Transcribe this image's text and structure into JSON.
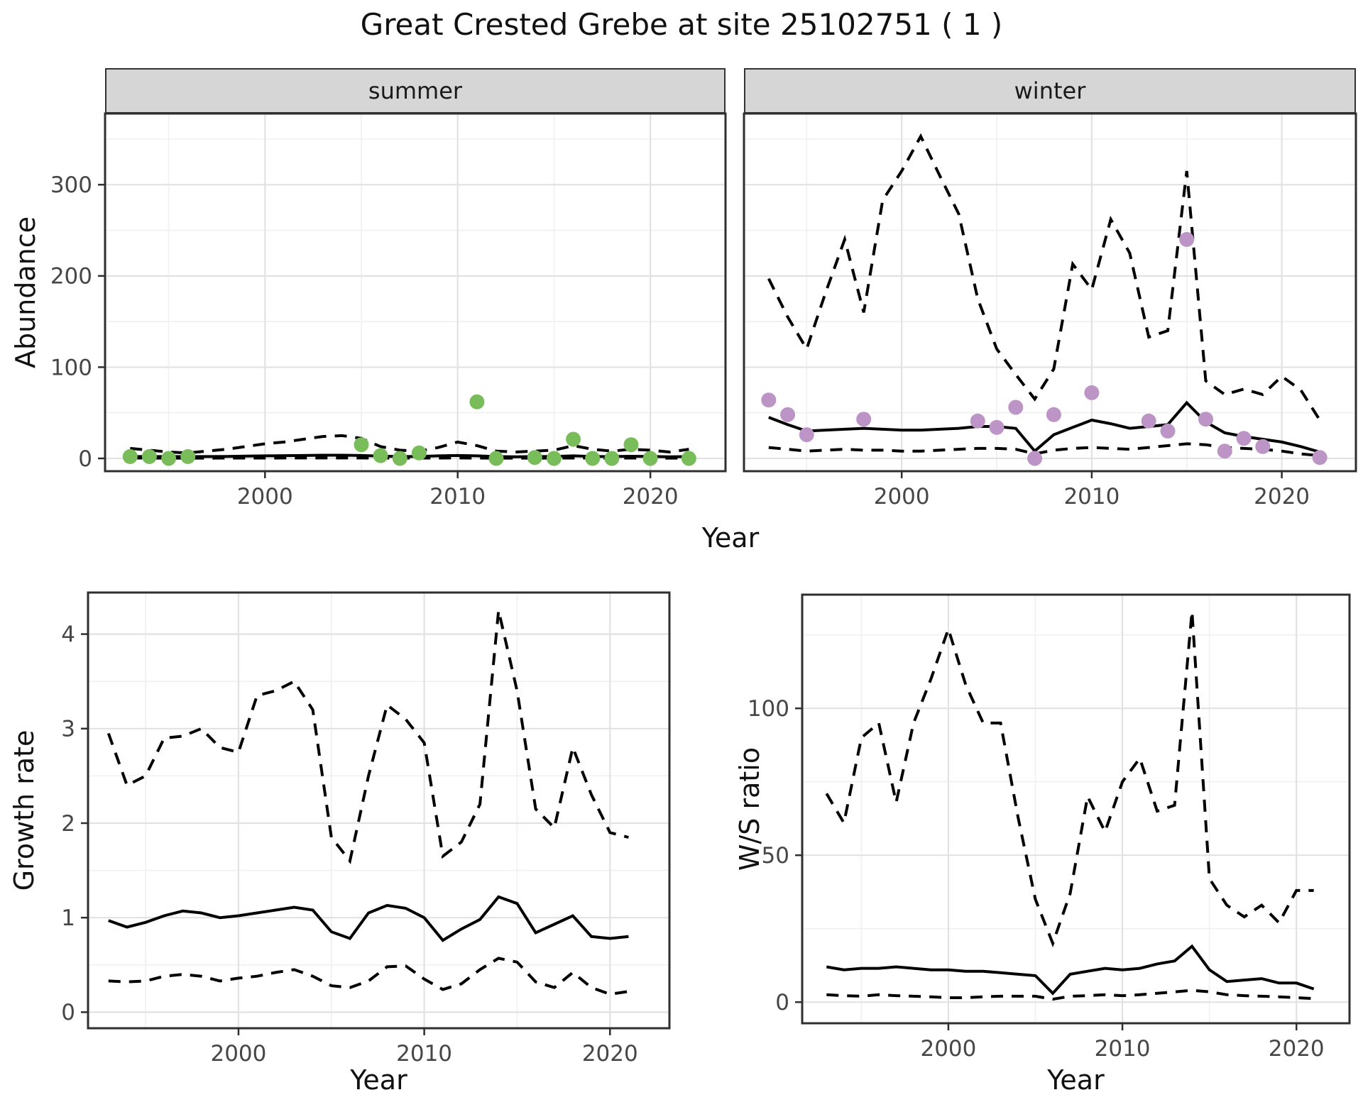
{
  "title": "Great Crested Grebe at site 25102751 ( 1 )",
  "colors": {
    "line": "#000000",
    "summer_point": "#79bd5a",
    "winter_point": "#bd94c6",
    "strip_background": "#d6d6d6",
    "grid_major": "#e2e2e2",
    "grid_minor": "#f0f0f0",
    "panel_border": "#2f2f2f",
    "tick_text": "#464646"
  },
  "chart_data": [
    {
      "id": "abundance-summer",
      "type": "line",
      "facet_label": "summer",
      "xlabel": "Year",
      "ylabel": "Abundance",
      "x_ticks": [
        2000,
        2010,
        2020
      ],
      "y_ticks": [
        0,
        100,
        200,
        300
      ],
      "x_minor": [
        1995,
        2005,
        2015
      ],
      "y_minor": [
        50,
        150,
        250,
        350
      ],
      "x_domain": [
        1991.7,
        2023.9
      ],
      "y_domain": [
        -14,
        378
      ],
      "years": [
        1993,
        1994,
        1995,
        1996,
        1997,
        1998,
        1999,
        2000,
        2001,
        2002,
        2003,
        2004,
        2005,
        2006,
        2007,
        2008,
        2009,
        2010,
        2011,
        2012,
        2013,
        2014,
        2015,
        2016,
        2017,
        2018,
        2019,
        2020,
        2021,
        2022
      ],
      "series": [
        {
          "name": "upper_ci",
          "style": "dashed",
          "values": [
            11,
            9,
            7,
            6,
            8,
            10,
            13,
            16,
            18,
            21,
            24,
            25,
            22,
            13,
            9,
            8,
            12,
            18,
            14,
            8,
            7,
            8,
            9,
            14,
            10,
            8,
            10,
            9,
            7,
            10
          ]
        },
        {
          "name": "median",
          "style": "solid",
          "values": [
            2,
            2,
            2,
            2,
            2,
            2.2,
            2.5,
            2.8,
            3,
            3.2,
            3.5,
            3.5,
            3.2,
            2.5,
            2,
            2.2,
            2.8,
            3.2,
            2.8,
            2,
            1.8,
            2,
            2.2,
            2.8,
            2.2,
            2,
            2.3,
            2.2,
            1.8,
            2
          ]
        },
        {
          "name": "lower_ci",
          "style": "dashed",
          "values": [
            0.5,
            0.4,
            0.3,
            0.3,
            0.3,
            0.4,
            0.4,
            0.4,
            0.5,
            0.5,
            0.5,
            0.5,
            0.5,
            0.4,
            0.3,
            0.4,
            0.4,
            0.5,
            0.4,
            0.3,
            0.3,
            0.3,
            0.3,
            0.4,
            0.3,
            0.3,
            0.4,
            0.3,
            0.3,
            0.3
          ]
        }
      ],
      "points": {
        "name": "summer_counts",
        "color": "#79bd5a",
        "data": [
          [
            1993,
            2
          ],
          [
            1994,
            2
          ],
          [
            1995,
            0
          ],
          [
            1996,
            2
          ],
          [
            2005,
            15
          ],
          [
            2006,
            3
          ],
          [
            2007,
            0
          ],
          [
            2008,
            6
          ],
          [
            2011,
            62
          ],
          [
            2012,
            0
          ],
          [
            2014,
            1
          ],
          [
            2015,
            0
          ],
          [
            2016,
            21
          ],
          [
            2017,
            0
          ],
          [
            2018,
            0
          ],
          [
            2019,
            15
          ],
          [
            2020,
            0
          ],
          [
            2022,
            0
          ]
        ]
      }
    },
    {
      "id": "abundance-winter",
      "type": "line",
      "facet_label": "winter",
      "xlabel": "Year",
      "ylabel": "Abundance",
      "x_ticks": [
        2000,
        2010,
        2020
      ],
      "y_ticks": [
        0,
        100,
        200,
        300
      ],
      "x_minor": [
        1995,
        2005,
        2015
      ],
      "y_minor": [
        50,
        150,
        250,
        350
      ],
      "x_domain": [
        1991.7,
        2023.9
      ],
      "y_domain": [
        -14,
        378
      ],
      "years": [
        1993,
        1994,
        1995,
        1996,
        1997,
        1998,
        1999,
        2000,
        2001,
        2002,
        2003,
        2004,
        2005,
        2006,
        2007,
        2008,
        2009,
        2010,
        2011,
        2012,
        2013,
        2014,
        2015,
        2016,
        2017,
        2018,
        2019,
        2020,
        2021,
        2022
      ],
      "series": [
        {
          "name": "upper_ci",
          "style": "dashed",
          "values": [
            197,
            155,
            120,
            182,
            240,
            160,
            283,
            315,
            353,
            310,
            268,
            175,
            120,
            92,
            65,
            98,
            213,
            185,
            262,
            225,
            133,
            140,
            315,
            85,
            70,
            76,
            70,
            90,
            75,
            42
          ]
        },
        {
          "name": "median",
          "style": "solid",
          "values": [
            45,
            37,
            30,
            31,
            32,
            33,
            32,
            31,
            31,
            32,
            33,
            35,
            35,
            33,
            8,
            26,
            34,
            42,
            38,
            33,
            35,
            37,
            61,
            40,
            28,
            24,
            21,
            18,
            13,
            7
          ]
        },
        {
          "name": "lower_ci",
          "style": "dashed",
          "values": [
            12,
            10,
            8,
            9,
            10,
            9,
            9,
            8,
            8,
            9,
            10,
            11,
            11,
            10,
            5,
            9,
            11,
            12,
            11,
            10,
            12,
            14,
            16,
            15,
            12,
            11,
            10,
            8,
            5,
            3
          ]
        }
      ],
      "points": {
        "name": "winter_counts",
        "color": "#bd94c6",
        "data": [
          [
            1993,
            64
          ],
          [
            1994,
            48
          ],
          [
            1995,
            26
          ],
          [
            1998,
            43
          ],
          [
            2004,
            41
          ],
          [
            2005,
            34
          ],
          [
            2006,
            56
          ],
          [
            2007,
            0
          ],
          [
            2008,
            48
          ],
          [
            2010,
            72
          ],
          [
            2013,
            41
          ],
          [
            2014,
            30
          ],
          [
            2015,
            240
          ],
          [
            2016,
            43
          ],
          [
            2017,
            8
          ],
          [
            2018,
            22
          ],
          [
            2019,
            13
          ],
          [
            2022,
            1
          ]
        ]
      }
    },
    {
      "id": "growth-rate",
      "type": "line",
      "facet_label": "",
      "xlabel": "Year",
      "ylabel": "Growth rate",
      "x_ticks": [
        2000,
        2010,
        2020
      ],
      "y_ticks": [
        0,
        1,
        2,
        3,
        4
      ],
      "x_minor": [
        1995,
        2005,
        2015
      ],
      "y_minor": [
        0.5,
        1.5,
        2.5,
        3.5
      ],
      "x_domain": [
        1991.9,
        2023.2
      ],
      "y_domain": [
        -0.17,
        4.44
      ],
      "years": [
        1993,
        1994,
        1995,
        1996,
        1997,
        1998,
        1999,
        2000,
        2001,
        2002,
        2003,
        2004,
        2005,
        2006,
        2007,
        2008,
        2009,
        2010,
        2011,
        2012,
        2013,
        2014,
        2015,
        2016,
        2017,
        2018,
        2019,
        2020,
        2021
      ],
      "series": [
        {
          "name": "upper_ci",
          "style": "dashed",
          "values": [
            2.95,
            2.4,
            2.5,
            2.9,
            2.92,
            3.0,
            2.8,
            2.75,
            3.35,
            3.4,
            3.5,
            3.2,
            1.85,
            1.6,
            2.5,
            3.25,
            3.1,
            2.85,
            1.65,
            1.8,
            2.2,
            4.25,
            3.4,
            2.15,
            1.95,
            2.8,
            2.3,
            1.9,
            1.85
          ]
        },
        {
          "name": "median",
          "style": "solid",
          "values": [
            0.97,
            0.9,
            0.95,
            1.02,
            1.07,
            1.05,
            1.0,
            1.02,
            1.05,
            1.08,
            1.11,
            1.08,
            0.85,
            0.78,
            1.05,
            1.13,
            1.1,
            1.0,
            0.76,
            0.88,
            0.98,
            1.22,
            1.15,
            0.84,
            0.93,
            1.02,
            0.8,
            0.78,
            0.8
          ]
        },
        {
          "name": "lower_ci",
          "style": "dashed",
          "values": [
            0.33,
            0.32,
            0.33,
            0.38,
            0.4,
            0.38,
            0.33,
            0.36,
            0.38,
            0.42,
            0.45,
            0.38,
            0.28,
            0.26,
            0.33,
            0.48,
            0.49,
            0.35,
            0.24,
            0.3,
            0.45,
            0.57,
            0.53,
            0.32,
            0.26,
            0.42,
            0.26,
            0.19,
            0.22
          ]
        }
      ],
      "points": null
    },
    {
      "id": "ws-ratio",
      "type": "line",
      "facet_label": "",
      "xlabel": "Year",
      "ylabel": "W/S ratio",
      "x_ticks": [
        2000,
        2010,
        2020
      ],
      "y_ticks": [
        0,
        50,
        100
      ],
      "x_minor": [
        1995,
        2005,
        2015
      ],
      "y_minor": [
        25,
        75,
        125
      ],
      "x_domain": [
        1991.6,
        2023.05
      ],
      "y_domain": [
        -7.2,
        138.7
      ],
      "years": [
        1993,
        1994,
        1995,
        1996,
        1997,
        1998,
        1999,
        2000,
        2001,
        2002,
        2003,
        2004,
        2005,
        2006,
        2007,
        2008,
        2009,
        2010,
        2011,
        2012,
        2013,
        2014,
        2015,
        2016,
        2017,
        2018,
        2019,
        2020,
        2021
      ],
      "series": [
        {
          "name": "upper_ci",
          "style": "dashed",
          "values": [
            71,
            61,
            90,
            95,
            68,
            95,
            110,
            127,
            108,
            95,
            95,
            63,
            35,
            20,
            37,
            70,
            58,
            75,
            83,
            65,
            67,
            133,
            42,
            33,
            29,
            33,
            27,
            38,
            38
          ]
        },
        {
          "name": "median",
          "style": "solid",
          "values": [
            12,
            11,
            11.5,
            11.5,
            12,
            11.5,
            11,
            11,
            10.5,
            10.5,
            10,
            9.5,
            9,
            3,
            9.5,
            10.5,
            11.5,
            11,
            11.5,
            13,
            14,
            19,
            11,
            7,
            7.5,
            8,
            6.5,
            6.5,
            4.5
          ]
        },
        {
          "name": "lower_ci",
          "style": "dashed",
          "values": [
            2.5,
            2.2,
            2,
            2.5,
            2.2,
            2,
            1.8,
            1.5,
            1.5,
            1.8,
            2,
            2,
            2,
            1,
            2,
            2.2,
            2.5,
            2.2,
            2.5,
            3,
            3.5,
            4,
            3.5,
            2.5,
            2.2,
            2,
            1.8,
            1.5,
            1.2
          ]
        }
      ],
      "points": null
    }
  ]
}
